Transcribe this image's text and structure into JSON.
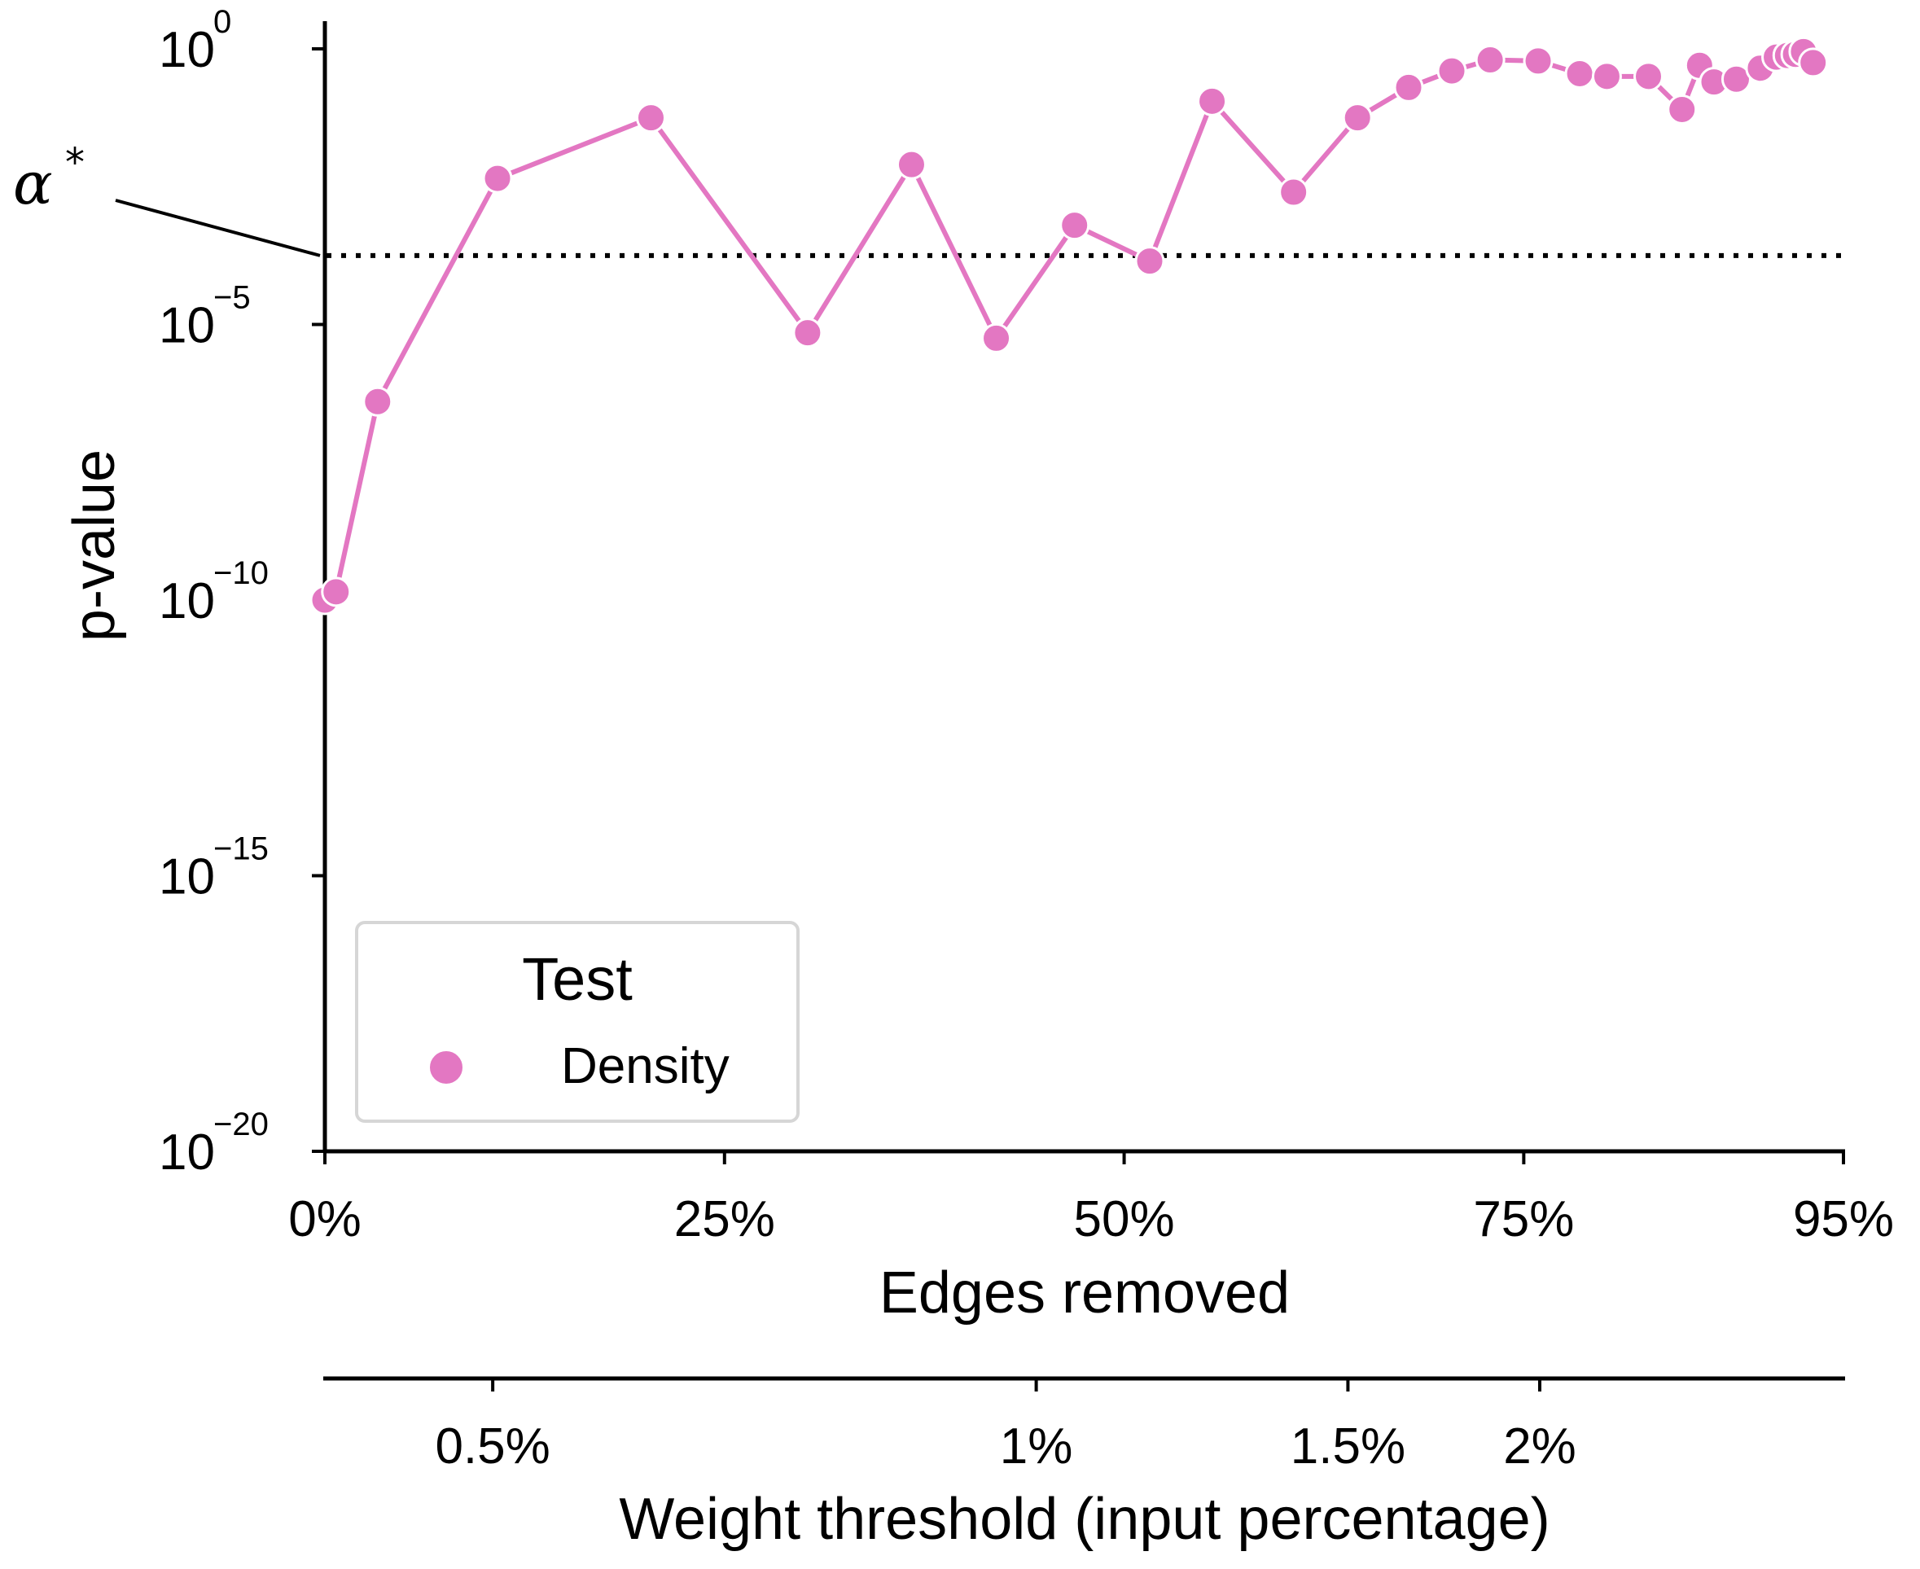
{
  "chart_data": {
    "type": "line",
    "ylabel": "p-value",
    "xlabel": "Edges removed",
    "secondary_xlabel": "Weight threshold (input percentage)",
    "yscale": "log",
    "ylim": [
      1e-20,
      1
    ],
    "xlim": [
      0,
      95
    ],
    "x_ticks": [
      "0%",
      "25%",
      "50%",
      "75%",
      "95%"
    ],
    "x_tick_values": [
      0,
      25,
      50,
      75,
      95
    ],
    "y_ticks": [
      {
        "base": "10",
        "exp": "0",
        "value": 0
      },
      {
        "base": "10",
        "exp": "−5",
        "value": -5
      },
      {
        "base": "10",
        "exp": "−10",
        "value": -10
      },
      {
        "base": "10",
        "exp": "−15",
        "value": -15
      },
      {
        "base": "10",
        "exp": "−20",
        "value": -20
      }
    ],
    "secondary_x_ticks": [
      {
        "label": "0.5%",
        "edges_removed": 10.5
      },
      {
        "label": "1%",
        "edges_removed": 44.5
      },
      {
        "label": "1.5%",
        "edges_removed": 64
      },
      {
        "label": "2%",
        "edges_removed": 76
      }
    ],
    "threshold": {
      "label": "α",
      "superscript": "*",
      "log10_value": -3.75,
      "style": "dotted"
    },
    "legend": {
      "title": "Test",
      "entries": [
        "Density"
      ],
      "location": "lower-left"
    },
    "colors": {
      "series": "#e377c2",
      "axis": "#000000",
      "threshold": "#000000"
    },
    "series": [
      {
        "name": "Density",
        "x": [
          0,
          0.7,
          3.3,
          10.8,
          20.4,
          30.2,
          36.7,
          42.0,
          46.9,
          51.6,
          55.5,
          60.6,
          64.6,
          67.8,
          70.5,
          72.9,
          75.9,
          78.5,
          80.2,
          82.8,
          84.9,
          86.0,
          86.9,
          88.3,
          89.8,
          90.8,
          91.5,
          92.0,
          92.5,
          93.1
        ],
        "y_log10": [
          -10.0,
          -9.85,
          -6.4,
          -2.35,
          -1.25,
          -5.15,
          -2.1,
          -5.25,
          -3.2,
          -3.85,
          -0.95,
          -2.6,
          -1.25,
          -0.7,
          -0.4,
          -0.2,
          -0.22,
          -0.45,
          -0.5,
          -0.5,
          -1.1,
          -0.3,
          -0.6,
          -0.55,
          -0.35,
          -0.15,
          -0.12,
          -0.1,
          -0.05,
          -0.25
        ]
      }
    ]
  }
}
